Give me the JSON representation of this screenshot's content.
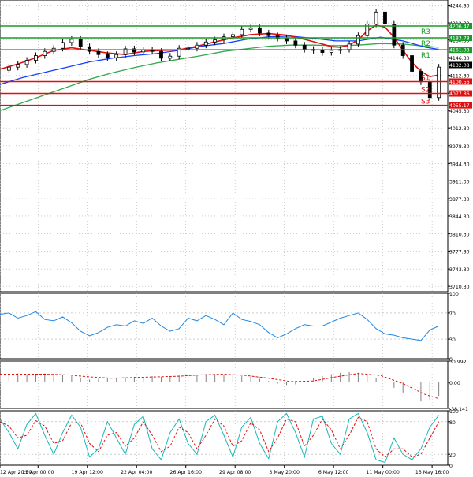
{
  "colors": {
    "background": "#ffffff",
    "candle": "#000000",
    "ma_fast": "#e01010",
    "ma_mid": "#1040ff",
    "ma_slow": "#2faa4a",
    "support": "#e01010",
    "resistance": "#1a9a2a",
    "current_price_box": "#000000",
    "rsi_line": "#1e88e5",
    "macd_hist": "#808080",
    "macd_signal": "#e01010",
    "stoch_main": "#17b7b7",
    "stoch_signal": "#e01010",
    "grid": "#b0b0b0"
  },
  "chart_data": [
    {
      "type": "line",
      "name": "price",
      "ylim": [
        3700,
        4256
      ],
      "yticks": [
        4246.3,
        4212.3,
        4180.3,
        4146.3,
        4112.3,
        4078.3,
        4045.3,
        4012.3,
        3978.3,
        3944.3,
        3911.3,
        3877.3,
        3844.3,
        3810.3,
        3777.3,
        3743.3,
        3710.3
      ],
      "ytick_labels": [
        "4246.30",
        "4212.30",
        "4180.30",
        "4146.30",
        "4112.30",
        "4078.30",
        "4045.30",
        "4012.30",
        "3978.30",
        "3944.30",
        "3911.30",
        "3877.30",
        "3844.30",
        "3810.30",
        "3777.30",
        "3743.30",
        "3710.30"
      ],
      "xlim": [
        0,
        100
      ],
      "xticks": [
        0,
        8.5,
        19.5,
        30.5,
        41.5,
        52.5,
        63.5,
        74.5,
        85.5,
        96.5
      ],
      "xtick_labels": [
        "12 Apr 20:00",
        "15 Apr 00:00",
        "19 Apr 12:00",
        "22 Apr 04:00",
        "26 Apr 16:00",
        "29 Apr 08:00",
        "3 May 20:00",
        "6 May 12:00",
        "11 May 00:00",
        "13 May 16:00"
      ],
      "grid": true,
      "current_price": 4132.08,
      "current_price_label": "4132.08",
      "levels": [
        {
          "name": "R3",
          "label": "R3",
          "value": 4206.47,
          "value_label": "4206.47",
          "kind": "resistance"
        },
        {
          "name": "R2",
          "label": "R2",
          "value": 4183.78,
          "value_label": "4183.78",
          "kind": "resistance"
        },
        {
          "name": "R1",
          "label": "R1",
          "value": 4161.08,
          "value_label": "4161.08",
          "kind": "resistance"
        },
        {
          "name": "S1",
          "label": "S1",
          "value": 4100.56,
          "value_label": "4100.56",
          "kind": "support"
        },
        {
          "name": "S2",
          "label": "S2",
          "value": 4077.86,
          "value_label": "4077.86",
          "kind": "support"
        },
        {
          "name": "S3",
          "label": "S3",
          "value": 4055.17,
          "value_label": "4055.17",
          "kind": "support"
        }
      ],
      "price_path": {
        "x": [
          0,
          2,
          4,
          6,
          8,
          10,
          12,
          14,
          16,
          18,
          20,
          22,
          24,
          26,
          28,
          30,
          32,
          34,
          36,
          38,
          40,
          42,
          44,
          46,
          48,
          50,
          52,
          54,
          56,
          58,
          60,
          62,
          64,
          66,
          68,
          70,
          72,
          74,
          76,
          78,
          80,
          82,
          84,
          86,
          88,
          90,
          92,
          94,
          96,
          98
        ],
        "y": [
          4122,
          4128,
          4133,
          4141,
          4150,
          4158,
          4164,
          4175,
          4181,
          4167,
          4158,
          4152,
          4146,
          4152,
          4163,
          4157,
          4161,
          4158,
          4145,
          4149,
          4164,
          4164,
          4170,
          4176,
          4180,
          4186,
          4190,
          4200,
          4203,
          4193,
          4188,
          4183,
          4178,
          4170,
          4162,
          4160,
          4156,
          4160,
          4162,
          4172,
          4188,
          4210,
          4233,
          4210,
          4170,
          4150,
          4120,
          4100,
          4070,
          4128
        ]
      },
      "series": [
        {
          "name": "ma_fast",
          "x": [
            0,
            4,
            8,
            12,
            16,
            20,
            24,
            28,
            32,
            36,
            40,
            44,
            48,
            52,
            56,
            60,
            64,
            68,
            72,
            74,
            76,
            78,
            80,
            82,
            84,
            86,
            88,
            90,
            92,
            94,
            96,
            98
          ],
          "y": [
            4124,
            4134,
            4146,
            4160,
            4165,
            4160,
            4155,
            4152,
            4158,
            4160,
            4161,
            4168,
            4176,
            4184,
            4190,
            4192,
            4189,
            4181,
            4172,
            4167,
            4166,
            4170,
            4180,
            4197,
            4208,
            4204,
            4185,
            4160,
            4137,
            4120,
            4110,
            4113
          ]
        },
        {
          "name": "ma_mid",
          "x": [
            0,
            5,
            10,
            15,
            20,
            25,
            30,
            35,
            40,
            45,
            50,
            55,
            60,
            65,
            70,
            75,
            80,
            85,
            90,
            95,
            98
          ],
          "y": [
            4095,
            4108,
            4118,
            4128,
            4138,
            4145,
            4150,
            4154,
            4160,
            4168,
            4173,
            4181,
            4186,
            4187,
            4183,
            4178,
            4178,
            4185,
            4178,
            4166,
            4162
          ]
        },
        {
          "name": "ma_slow",
          "x": [
            0,
            5,
            10,
            15,
            20,
            25,
            30,
            35,
            40,
            45,
            50,
            55,
            60,
            65,
            70,
            75,
            80,
            85,
            90,
            95,
            98
          ],
          "y": [
            4045,
            4060,
            4075,
            4090,
            4105,
            4117,
            4127,
            4136,
            4143,
            4150,
            4158,
            4163,
            4168,
            4170,
            4170,
            4169,
            4170,
            4173,
            4172,
            4168,
            4166
          ]
        }
      ]
    },
    {
      "type": "line",
      "name": "rsi",
      "ylim": [
        0,
        100
      ],
      "yticks": [
        100,
        70,
        30,
        0
      ],
      "ytick_labels": [
        "100",
        "70",
        "30",
        "0"
      ],
      "series": [
        {
          "name": "rsi",
          "x": [
            0,
            2,
            4,
            6,
            8,
            10,
            12,
            14,
            16,
            18,
            20,
            22,
            24,
            26,
            28,
            30,
            32,
            34,
            36,
            38,
            40,
            42,
            44,
            46,
            48,
            50,
            52,
            54,
            56,
            58,
            60,
            62,
            64,
            66,
            68,
            70,
            72,
            74,
            76,
            78,
            80,
            82,
            84,
            86,
            88,
            90,
            92,
            94,
            96,
            98
          ],
          "y": [
            68,
            70,
            62,
            66,
            72,
            60,
            58,
            64,
            55,
            42,
            35,
            40,
            48,
            52,
            50,
            58,
            54,
            62,
            50,
            42,
            46,
            62,
            58,
            66,
            60,
            52,
            70,
            60,
            57,
            52,
            40,
            32,
            38,
            46,
            52,
            50,
            50,
            56,
            62,
            66,
            70,
            60,
            46,
            38,
            36,
            32,
            30,
            28,
            44,
            50
          ]
        }
      ]
    },
    {
      "type": "bar",
      "name": "macd",
      "ylim": [
        -38.141,
        30.992
      ],
      "yticks": [
        30.992,
        0,
        -38.141
      ],
      "ytick_labels": [
        "30.992",
        "0.00",
        "-38.141"
      ],
      "histogram": {
        "x": [
          0,
          2,
          4,
          6,
          8,
          10,
          12,
          14,
          16,
          18,
          20,
          22,
          24,
          26,
          28,
          30,
          32,
          34,
          36,
          38,
          40,
          42,
          44,
          46,
          48,
          50,
          52,
          54,
          56,
          58,
          60,
          62,
          64,
          66,
          68,
          70,
          72,
          74,
          76,
          78,
          80,
          82,
          84,
          86,
          88,
          90,
          92,
          94,
          96,
          98
        ],
        "y": [
          12,
          13,
          13,
          12,
          12,
          13,
          13,
          11,
          9,
          6,
          4,
          5,
          6,
          7,
          7,
          8,
          8,
          9,
          8,
          8,
          10,
          11,
          11,
          12,
          12,
          11,
          10,
          9,
          8,
          5,
          2,
          -2,
          -4,
          -3,
          2,
          6,
          9,
          12,
          14,
          15,
          14,
          11,
          6,
          0,
          -8,
          -15,
          -22,
          -28,
          -26,
          -20
        ]
      },
      "series": [
        {
          "name": "macd_signal",
          "x": [
            0,
            5,
            10,
            15,
            20,
            25,
            30,
            35,
            40,
            45,
            50,
            55,
            60,
            65,
            70,
            75,
            80,
            85,
            90,
            95,
            98
          ],
          "y": [
            12,
            12,
            12,
            11,
            8,
            6,
            7,
            8,
            9,
            11,
            12,
            10,
            6,
            1,
            2,
            8,
            13,
            10,
            -2,
            -18,
            -24
          ]
        }
      ]
    },
    {
      "type": "line",
      "name": "stochastic",
      "ylim": [
        0,
        100
      ],
      "yticks": [
        100,
        80,
        20,
        0
      ],
      "ytick_labels": [
        "100",
        "80",
        "20",
        "0"
      ],
      "series": [
        {
          "name": "stoch_main",
          "x": [
            0,
            2,
            4,
            6,
            8,
            10,
            12,
            14,
            16,
            18,
            20,
            22,
            24,
            26,
            28,
            30,
            32,
            34,
            36,
            38,
            40,
            42,
            44,
            46,
            48,
            50,
            52,
            54,
            56,
            58,
            60,
            62,
            64,
            66,
            68,
            70,
            72,
            74,
            76,
            78,
            80,
            82,
            84,
            86,
            88,
            90,
            92,
            94,
            96,
            98
          ],
          "y": [
            85,
            60,
            30,
            75,
            95,
            55,
            20,
            60,
            92,
            70,
            15,
            30,
            80,
            50,
            20,
            75,
            90,
            30,
            10,
            60,
            85,
            40,
            20,
            80,
            92,
            55,
            15,
            70,
            88,
            40,
            12,
            80,
            95,
            60,
            15,
            85,
            90,
            40,
            20,
            85,
            95,
            60,
            10,
            5,
            50,
            20,
            10,
            30,
            70,
            92
          ]
        },
        {
          "name": "stoch_signal",
          "x": [
            0,
            2,
            4,
            6,
            8,
            10,
            12,
            14,
            16,
            18,
            20,
            22,
            24,
            26,
            28,
            30,
            32,
            34,
            36,
            38,
            40,
            42,
            44,
            46,
            48,
            50,
            52,
            54,
            56,
            58,
            60,
            62,
            64,
            66,
            68,
            70,
            72,
            74,
            76,
            78,
            80,
            82,
            84,
            86,
            88,
            90,
            92,
            94,
            96,
            98
          ],
          "y": [
            80,
            72,
            50,
            55,
            82,
            72,
            40,
            45,
            78,
            78,
            40,
            25,
            55,
            60,
            35,
            50,
            80,
            55,
            25,
            35,
            70,
            60,
            30,
            55,
            85,
            72,
            35,
            45,
            78,
            65,
            25,
            50,
            85,
            80,
            35,
            55,
            85,
            65,
            30,
            55,
            88,
            80,
            30,
            15,
            30,
            30,
            15,
            20,
            50,
            80
          ]
        }
      ]
    }
  ]
}
